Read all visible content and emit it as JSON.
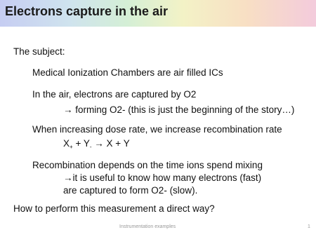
{
  "title": "Electrons capture in the air",
  "body": {
    "subject": "The subject:",
    "items": [
      "Medical Ionization Chambers are air filled ICs",
      "In the air, electrons are captured by O2",
      "→ forming O2- (this is just the beginning of the story…)",
      "When increasing dose rate, we increase recombination rate",
      "Recombination depends on the time ions spend mixing",
      "→it is useful to know how many electrons (fast)",
      "are captured to form O2- (slow)."
    ],
    "reaction": {
      "a": "X",
      "a_sub": "+",
      "b": "+ Y",
      "b_sub": "-",
      "rest": " → X + Y"
    },
    "question": "How to perform this measurement a direct way?"
  },
  "footer": {
    "text": "Instrumentation examples",
    "page": "1"
  }
}
